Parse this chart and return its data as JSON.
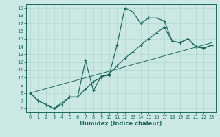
{
  "xlabel": "Humidex (Indice chaleur)",
  "bg_color": "#cce8e4",
  "line_color": "#1a6b5a",
  "grid_color": "#b0d8d0",
  "xlim": [
    -0.5,
    23.5
  ],
  "ylim": [
    5.5,
    19.5
  ],
  "xticks": [
    0,
    1,
    2,
    3,
    4,
    5,
    6,
    7,
    8,
    9,
    10,
    11,
    12,
    13,
    14,
    15,
    16,
    17,
    18,
    19,
    20,
    21,
    22,
    23
  ],
  "yticks": [
    6,
    7,
    8,
    9,
    10,
    11,
    12,
    13,
    14,
    15,
    16,
    17,
    18,
    19
  ],
  "line1_x": [
    0,
    1,
    2,
    3,
    5,
    6,
    7,
    8,
    9,
    10,
    11,
    12,
    13,
    14,
    15,
    16,
    17,
    18,
    19,
    20,
    21,
    22,
    23
  ],
  "line1_y": [
    8.0,
    7.0,
    6.5,
    6.0,
    7.5,
    7.5,
    12.2,
    8.3,
    10.2,
    10.3,
    14.2,
    19.0,
    18.5,
    17.0,
    17.7,
    17.7,
    17.3,
    14.7,
    14.5,
    15.0,
    14.0,
    13.8,
    14.2
  ],
  "line2_x": [
    0,
    1,
    2,
    3,
    4,
    5,
    6,
    7,
    8,
    9,
    10,
    11,
    12,
    13,
    14,
    15,
    16,
    17,
    18,
    19,
    20,
    21,
    22,
    23
  ],
  "line2_y": [
    8.0,
    7.0,
    6.5,
    6.0,
    6.5,
    7.5,
    7.5,
    8.5,
    9.5,
    10.0,
    10.5,
    11.5,
    12.5,
    13.3,
    14.2,
    15.0,
    15.8,
    16.5,
    14.7,
    14.5,
    15.0,
    14.0,
    13.8,
    14.2
  ],
  "line3_x": [
    0,
    23
  ],
  "line3_y": [
    8.0,
    14.5
  ]
}
